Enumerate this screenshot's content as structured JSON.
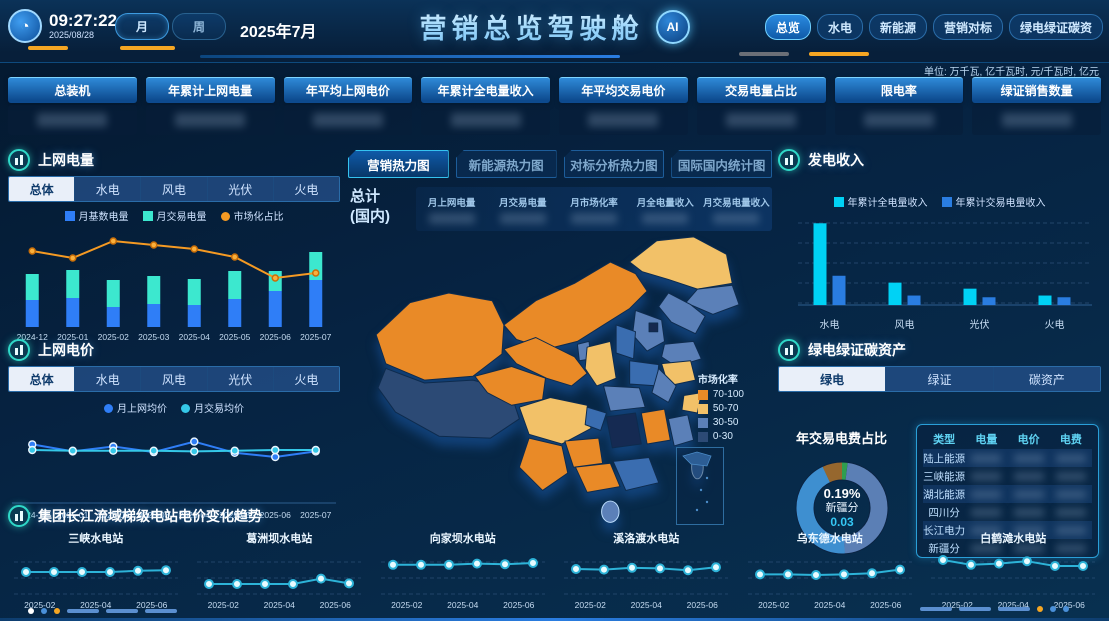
{
  "header": {
    "time": "09:27:22",
    "date": "2025/08/28",
    "period_month": "月",
    "period_week": "周",
    "current_period": "2025年7月",
    "title": "营销总览驾驶舱",
    "ai_badge": "AI",
    "nav": [
      "总览",
      "水电",
      "新能源",
      "营销对标",
      "绿电绿证碳资"
    ],
    "units_note": "单位: 万千瓦, 亿千瓦时, 元/千瓦时, 亿元"
  },
  "kpis": [
    "总装机",
    "年累计上网电量",
    "年平均上网电价",
    "年累计全电量收入",
    "年平均交易电价",
    "交易电量占比",
    "限电率",
    "绿证销售数量"
  ],
  "panels": {
    "grid_energy": {
      "title": "上网电量",
      "tabs": [
        "总体",
        "水电",
        "风电",
        "光伏",
        "火电"
      ],
      "active_tab": "总体",
      "legend": [
        "月基数电量",
        "月交易电量",
        "市场化占比"
      ]
    },
    "grid_price": {
      "title": "上网电价",
      "tabs": [
        "总体",
        "水电",
        "风电",
        "光伏",
        "火电"
      ],
      "active_tab": "总体",
      "legend": [
        "月上网均价",
        "月交易均价"
      ]
    },
    "heatmap": {
      "tabs": [
        "营销热力图",
        "新能源热力图",
        "对标分析热力图",
        "国际国内统计图"
      ],
      "active_tab": "营销热力图",
      "summary_label_line1": "总计",
      "summary_label_line2": "(国内)",
      "columns": [
        "月上网电量",
        "月交易电量",
        "月市场化率",
        "月全电量收入",
        "月交易电量收入"
      ],
      "legend_title": "市场化率",
      "legend": [
        {
          "label": "70-100",
          "color": "#e98a27"
        },
        {
          "label": "50-70",
          "color": "#f2c168"
        },
        {
          "label": "30-50",
          "color": "#5b80b8"
        },
        {
          "label": "0-30",
          "color": "#2c4a75"
        }
      ]
    },
    "gen_income": {
      "title": "发电收入",
      "legend": [
        "年累计全电量收入",
        "年累计交易电量收入"
      ]
    },
    "green": {
      "title": "绿电绿证碳资产",
      "tabs": [
        "绿电",
        "绿证",
        "碳资产"
      ],
      "active_tab": "绿电",
      "donut_label": "年交易电费占比",
      "donut_center": {
        "pct": "0.19%",
        "name": "新疆分",
        "value": "0.03"
      },
      "table": {
        "columns": [
          "类型",
          "电量",
          "电价",
          "电费"
        ],
        "rows": [
          "陆上能源",
          "三峡能源",
          "湖北能源",
          "四川分",
          "长江电力",
          "新疆分"
        ]
      }
    },
    "stations": {
      "title": "集团长江流域梯级电站电价变化趋势"
    }
  },
  "colors": {
    "base_bar": "#2f7ef7",
    "trade_bar": "#3ce8cf",
    "market_line": "#f59a23",
    "price_line1": "#2f7ef7",
    "price_line2": "#35c8e8",
    "income_bar1": "#00d2f5",
    "income_bar2": "#2a7de1",
    "mini_line": "#2db3d8"
  },
  "chart_data": [
    {
      "id": "grid_energy",
      "type": "bar",
      "title": "上网电量",
      "categories": [
        "2024-12",
        "2025-01",
        "2025-02",
        "2025-03",
        "2025-04",
        "2025-05",
        "2025-06",
        "2025-07"
      ],
      "stacked": true,
      "series": [
        {
          "name": "月基数电量",
          "type": "bar",
          "color": "#2f7ef7",
          "values": [
            27,
            29,
            20,
            23,
            22,
            28,
            36,
            47
          ]
        },
        {
          "name": "月交易电量",
          "type": "bar",
          "color": "#3ce8cf",
          "values": [
            26,
            28,
            27,
            28,
            26,
            28,
            20,
            28
          ]
        },
        {
          "name": "市场化占比",
          "type": "line",
          "color": "#f59a23",
          "values": [
            72,
            65,
            82,
            78,
            74,
            66,
            45,
            50
          ]
        }
      ],
      "ylim": [
        0,
        100
      ],
      "grid": false,
      "legend_position": "top"
    },
    {
      "id": "grid_price",
      "type": "line",
      "title": "上网电价",
      "categories": [
        "2024-12",
        "2025-01",
        "2025-02",
        "2025-03",
        "2025-04",
        "2025-05",
        "2025-06",
        "2025-07"
      ],
      "series": [
        {
          "name": "月上网均价",
          "color": "#2f7ef7",
          "values": [
            58,
            48,
            55,
            47,
            62,
            46,
            40,
            48
          ]
        },
        {
          "name": "月交易均价",
          "color": "#35c8e8",
          "values": [
            50,
            49,
            49,
            49,
            48,
            49,
            50,
            50
          ]
        }
      ],
      "ylim": [
        0,
        100
      ],
      "grid": false,
      "legend_position": "top"
    },
    {
      "id": "gen_income",
      "type": "bar",
      "title": "发电收入",
      "categories": [
        "水电",
        "风电",
        "光伏",
        "火电"
      ],
      "stacked": false,
      "series": [
        {
          "name": "年累计全电量收入",
          "color": "#00d2f5",
          "values": [
            95,
            26,
            19,
            11
          ]
        },
        {
          "name": "年累计交易电量收入",
          "color": "#2a7de1",
          "values": [
            34,
            11,
            9,
            9
          ]
        }
      ],
      "ylim": [
        0,
        100
      ],
      "grid": true,
      "legend_position": "top"
    },
    {
      "id": "green_donut",
      "type": "pie",
      "title": "年交易电费占比",
      "center_text": {
        "pct": "0.19%",
        "name": "新疆分",
        "value": "0.03"
      },
      "slices": [
        {
          "label": "slice-green",
          "value": 2,
          "color": "#2f9e4f"
        },
        {
          "label": "slice-steelblue",
          "value": 47,
          "color": "#5b7fb5"
        },
        {
          "label": "slice-azure",
          "value": 44,
          "color": "#3e8fd0"
        },
        {
          "label": "slice-brown",
          "value": 7,
          "color": "#96672e"
        }
      ]
    },
    {
      "id": "stations",
      "type": "line",
      "title": "集团长江流域梯级电站电价变化趋势",
      "x": [
        "2025-02",
        "2025-03",
        "2025-04",
        "2025-05",
        "2025-06",
        "2025-07"
      ],
      "tick_labels": [
        "2025-02",
        "2025-04",
        "2025-06"
      ],
      "series": [
        {
          "name": "三峡水电站",
          "values": [
            50,
            50,
            50,
            50,
            52,
            53
          ]
        },
        {
          "name": "葛洲坝水电站",
          "values": [
            30,
            30,
            30,
            30,
            39,
            31
          ]
        },
        {
          "name": "向家坝水电站",
          "values": [
            62,
            62,
            62,
            64,
            63,
            65
          ]
        },
        {
          "name": "溪洛渡水电站",
          "values": [
            55,
            54,
            57,
            56,
            53,
            58
          ]
        },
        {
          "name": "乌东德水电站",
          "values": [
            46,
            46,
            45,
            46,
            48,
            54
          ]
        },
        {
          "name": "白鹤滩水电站",
          "values": [
            70,
            62,
            64,
            68,
            60,
            60
          ]
        }
      ]
    }
  ]
}
